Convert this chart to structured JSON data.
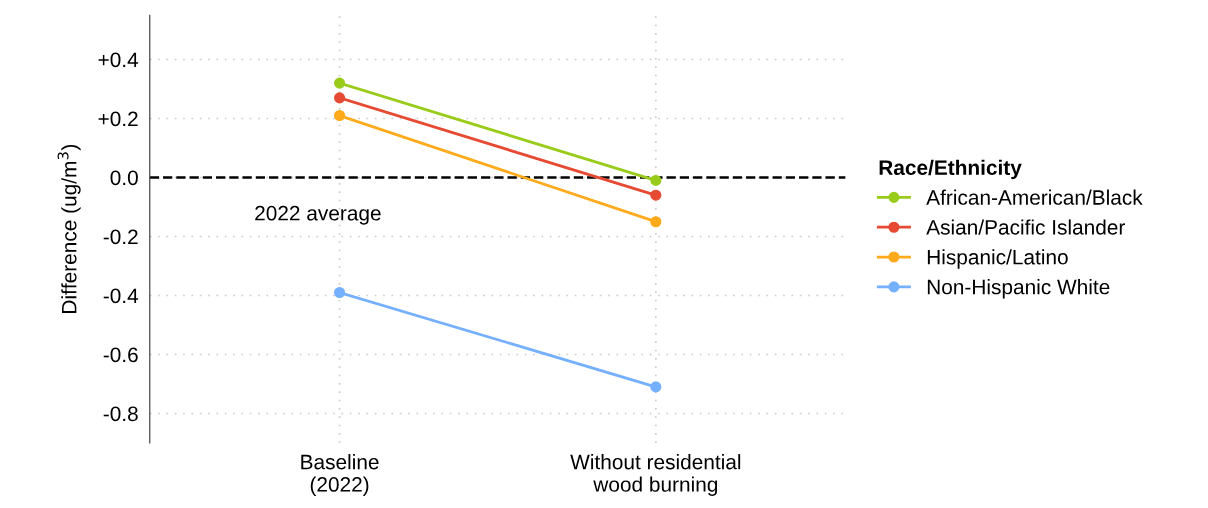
{
  "chart_data": {
    "type": "line",
    "ylabel": "Difference (ug/m$^{3}$)",
    "legend_title": "Race/Ethnicity",
    "categories": [
      "Baseline\n(2022)",
      "Without residential\nwood burning"
    ],
    "series": [
      {
        "name": "African-American/Black",
        "color": "#99cc1a",
        "values": [
          0.32,
          -0.01
        ]
      },
      {
        "name": "Asian/Pacific Islander",
        "color": "#e64a33",
        "values": [
          0.27,
          -0.06
        ]
      },
      {
        "name": "Hispanic/Latino",
        "color": "#ffaa1a",
        "values": [
          0.21,
          -0.15
        ]
      },
      {
        "name": "Non-Hispanic White",
        "color": "#75b0ff",
        "values": [
          -0.39,
          -0.71
        ]
      }
    ],
    "ylim": [
      -0.9,
      0.55
    ],
    "yticks": [
      {
        "value": 0.4,
        "label": "+0.4"
      },
      {
        "value": 0.2,
        "label": "+0.2"
      },
      {
        "value": 0.0,
        "label": "0.0"
      },
      {
        "value": -0.2,
        "label": "-0.2"
      },
      {
        "value": -0.4,
        "label": "-0.4"
      },
      {
        "value": -0.6,
        "label": "-0.6"
      },
      {
        "value": -0.8,
        "label": "-0.8"
      }
    ],
    "ref_lines": [
      {
        "axis": "y",
        "value": 0,
        "label": "2022 average",
        "color": "#000000",
        "line_style": "dashed"
      }
    ],
    "grid": true,
    "legend": "right",
    "marker": "circle",
    "line_style": "solid"
  }
}
